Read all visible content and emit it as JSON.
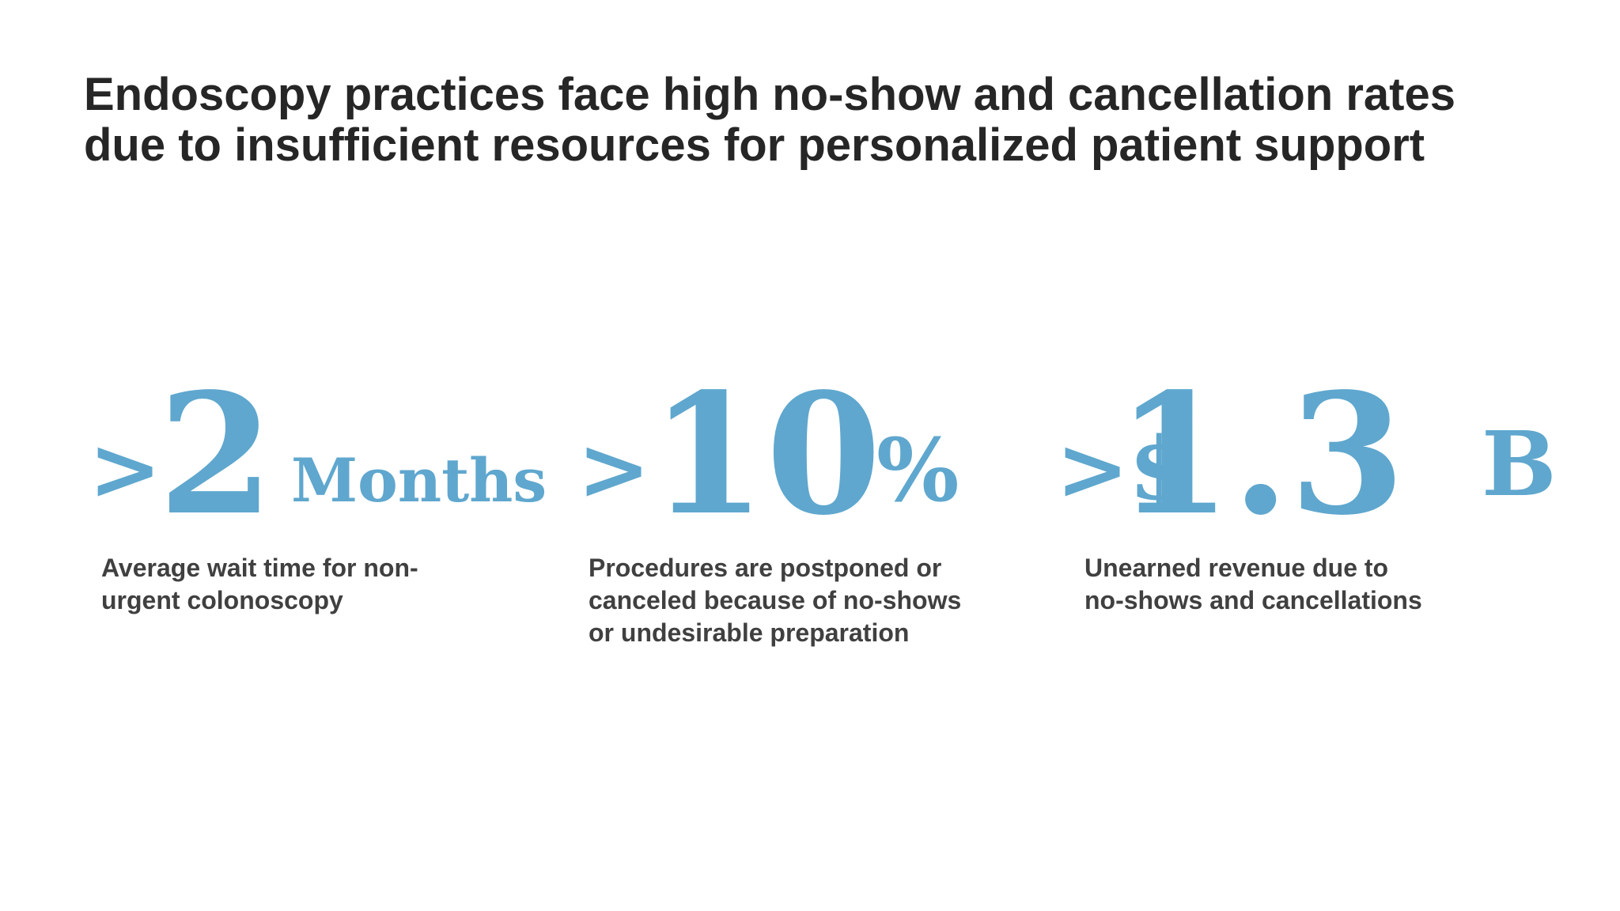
{
  "slide": {
    "title_lines": [
      "Endoscopy practices face high no-show and cancellation rates",
      "due to insufficient resources for personalized patient support"
    ],
    "accent_color": "#5fa7ce",
    "text_color": "#262626",
    "stats": [
      {
        "prefix": ">",
        "number": "2",
        "unit": "Months",
        "caption_lines": [
          "Average wait time for non-",
          "urgent colonoscopy"
        ]
      },
      {
        "prefix": ">",
        "number": "10",
        "unit": "%",
        "caption_lines": [
          "Procedures are postponed or",
          "canceled because of no-shows",
          "or undesirable preparation"
        ]
      },
      {
        "prefix": ">$",
        "number": "1.3",
        "unit": "B",
        "caption_lines": [
          "Unearned revenue due to",
          "no-shows and cancellations"
        ]
      }
    ]
  }
}
